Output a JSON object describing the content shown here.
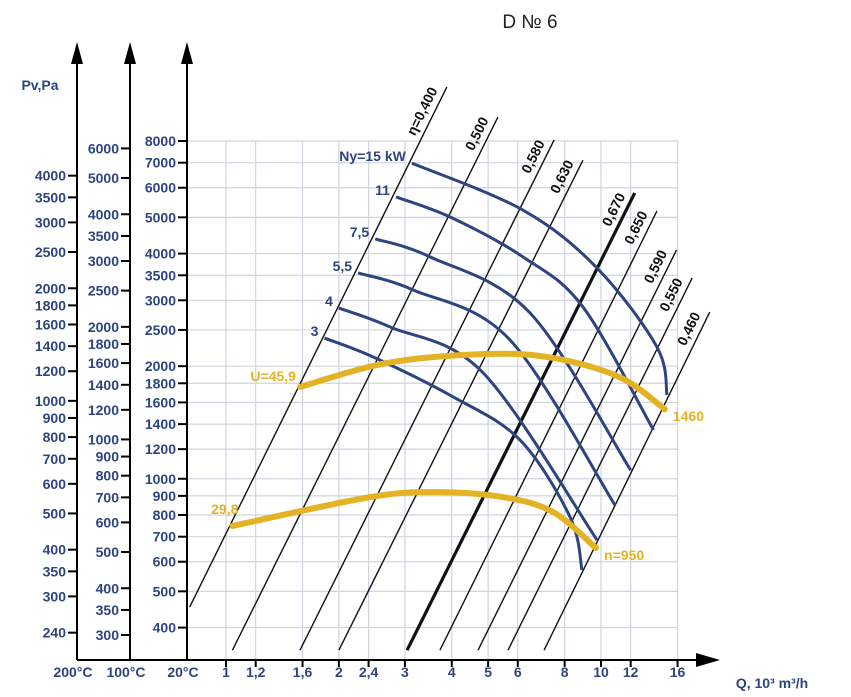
{
  "chart_data": {
    "type": "line",
    "title": "D № 6",
    "xlabel": "Q, 10³ m³/h",
    "ylabel": "Pv,Pa",
    "x_scale": "log",
    "y_scale": "log",
    "grid": true,
    "xlim": [
      1,
      16
    ],
    "ylim": [
      348,
      8000
    ],
    "x_ticks": [
      "1",
      "1,2",
      "1,6",
      "2",
      "2,4",
      "3",
      "4",
      "5",
      "6",
      "8",
      "10",
      "12",
      "16"
    ],
    "x_tick_values": [
      1,
      1.2,
      1.6,
      2,
      2.4,
      3,
      4,
      5,
      6,
      8,
      10,
      12,
      16
    ],
    "pressure_axes": [
      {
        "temperature": "200°C",
        "density_factor": 0.619,
        "ticks": [
          4000,
          3500,
          3000,
          2500,
          2000,
          1800,
          1600,
          1400,
          1200,
          1000,
          900,
          800,
          700,
          600,
          500,
          400,
          350,
          300,
          240
        ]
      },
      {
        "temperature": "100°C",
        "density_factor": 0.785,
        "ticks": [
          6000,
          5000,
          4000,
          3500,
          3000,
          2500,
          2000,
          1800,
          1600,
          1400,
          1200,
          1000,
          900,
          800,
          700,
          600,
          500,
          400,
          350,
          300
        ]
      },
      {
        "temperature": "20°C",
        "density_factor": 1.0,
        "ticks": [
          8000,
          7000,
          6000,
          5000,
          4000,
          3500,
          3000,
          2500,
          2000,
          1800,
          1600,
          1400,
          1200,
          1000,
          900,
          800,
          700,
          600,
          500,
          400
        ]
      }
    ],
    "efficiency_lines": [
      {
        "label": "η=0,400",
        "points": [
          [
            0.8,
            454
          ],
          [
            3.88,
            11150
          ]
        ]
      },
      {
        "label": "0,500",
        "points": [
          [
            1.04,
            348
          ],
          [
            5.31,
            9270
          ]
        ]
      },
      {
        "label": "0,580",
        "points": [
          [
            1.575,
            348
          ],
          [
            7.5,
            8050
          ]
        ]
      },
      {
        "label": "0,630",
        "points": [
          [
            2.0,
            348
          ],
          [
            8.95,
            7110
          ]
        ]
      },
      {
        "label": "0,670",
        "points": [
          [
            3.04,
            348
          ],
          [
            12.3,
            5810
          ]
        ],
        "bold": true
      },
      {
        "label": "0,650",
        "points": [
          [
            3.72,
            348
          ],
          [
            14.1,
            5200
          ]
        ]
      },
      {
        "label": "0,590",
        "points": [
          [
            4.7,
            348
          ],
          [
            15.9,
            4090
          ]
        ]
      },
      {
        "label": "0,550",
        "points": [
          [
            5.65,
            348
          ],
          [
            17.5,
            3440
          ]
        ]
      },
      {
        "label": "0,460",
        "points": [
          [
            7.05,
            348
          ],
          [
            19.5,
            2790
          ]
        ]
      }
    ],
    "power_curves": [
      {
        "label": "Ny=15 kW",
        "points": [
          [
            3.13,
            6980
          ],
          [
            6.19,
            5230
          ],
          [
            9.76,
            3660
          ],
          [
            14.1,
            2250
          ],
          [
            15.0,
            1675
          ]
        ]
      },
      {
        "label": "11",
        "points": [
          [
            2.84,
            5670
          ],
          [
            3.96,
            5010
          ],
          [
            6.19,
            3920
          ],
          [
            8.95,
            2880
          ],
          [
            13.8,
            1350
          ]
        ]
      },
      {
        "label": "7,5",
        "points": [
          [
            2.5,
            4380
          ],
          [
            3.5,
            3920
          ],
          [
            6.47,
            2775
          ],
          [
            12.0,
            1054
          ]
        ]
      },
      {
        "label": "5,5",
        "points": [
          [
            2.25,
            3550
          ],
          [
            3.15,
            3200
          ],
          [
            5.72,
            2350
          ],
          [
            10.9,
            850
          ]
        ]
      },
      {
        "label": "4",
        "points": [
          [
            2.0,
            2860
          ],
          [
            2.74,
            2545
          ],
          [
            4.85,
            1919
          ],
          [
            9.76,
            686
          ]
        ]
      },
      {
        "label": "3",
        "points": [
          [
            1.83,
            2378
          ],
          [
            2.47,
            2116
          ],
          [
            4.03,
            1656
          ],
          [
            6.08,
            1270
          ],
          [
            8.27,
            790
          ],
          [
            8.9,
            570
          ]
        ]
      }
    ],
    "speed_curves": [
      {
        "label_start": "U=45,9",
        "label_end": "1460",
        "points": [
          [
            1.575,
            1760
          ],
          [
            2.69,
            2040
          ],
          [
            4.97,
            2155
          ],
          [
            7.45,
            2104
          ],
          [
            11.2,
            1870
          ],
          [
            14.8,
            1535
          ]
        ]
      },
      {
        "label_start": "29,8",
        "label_end": "n=950",
        "points": [
          [
            1.04,
            748
          ],
          [
            2.42,
            893
          ],
          [
            3.65,
            921
          ],
          [
            5.48,
            893
          ],
          [
            7.45,
            815
          ],
          [
            9.7,
            653
          ]
        ]
      }
    ],
    "colors": {
      "power": "#2c4580",
      "speed": "#e3b325",
      "efficiency": "#111111",
      "grid": "#d0d4df",
      "ticks": "#2c4580"
    }
  }
}
